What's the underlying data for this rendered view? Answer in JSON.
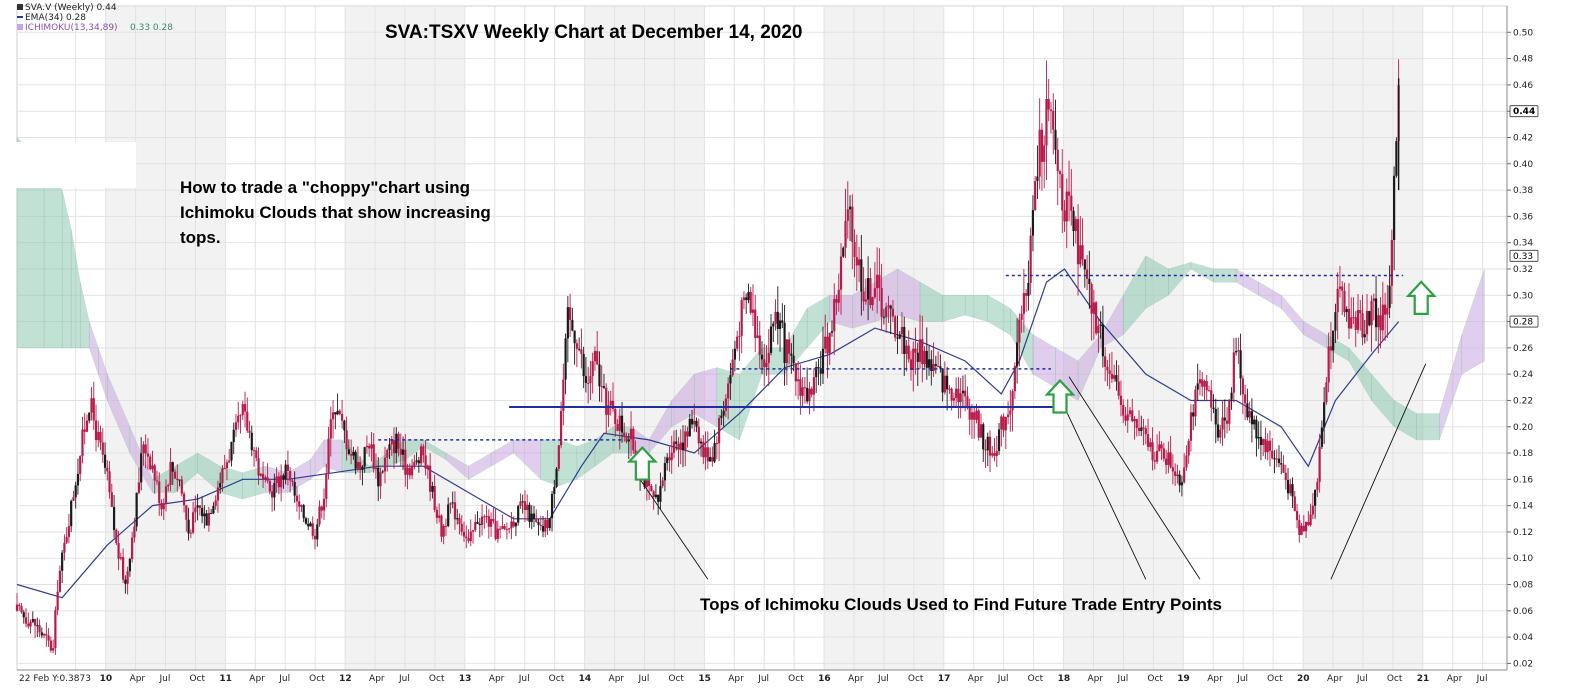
{
  "chart_data": {
    "type": "candlestick",
    "title": "SVA:TSXV Weekly Chart at December 14, 2020",
    "annotation_text": [
      "How to trade a \"choppy\"chart using",
      "Ichimoku Clouds that show increasing",
      "tops."
    ],
    "bottom_annotation": "Tops of Ichimoku Clouds Used to Find Future Trade Entry Points",
    "legend": {
      "price": "SVA.V (Weekly) 0.44",
      "ema": "EMA(34) 0.28",
      "ichimoku_label": "ICHIMOKU(13,34,89)",
      "ichimoku_values": "0.33 0.28"
    },
    "start_label": "22 Feb Y:0.3873",
    "ylim": [
      0.015,
      0.52
    ],
    "y_ticks": [
      "0.50",
      "0.48",
      "0.46",
      "0.44",
      "0.42",
      "0.40",
      "0.38",
      "0.36",
      "0.34",
      "0.32",
      "0.30",
      "0.28",
      "0.26",
      "0.24",
      "0.22",
      "0.20",
      "0.18",
      "0.16",
      "0.14",
      "0.12",
      "0.10",
      "0.08",
      "0.06",
      "0.04",
      "0.02"
    ],
    "y_badges": [
      {
        "label": "0.44",
        "value": 0.44,
        "bold": true
      },
      {
        "label": "0.33",
        "value": 0.33,
        "bold": false
      },
      {
        "label": "0.28",
        "value": 0.28,
        "bold": false
      }
    ],
    "x_ticks": [
      "Oct",
      "10",
      "Apr",
      "Jul",
      "Oct",
      "11",
      "Apr",
      "Jul",
      "Oct",
      "12",
      "Apr",
      "Jul",
      "Oct",
      "13",
      "Apr",
      "Jul",
      "Oct",
      "14",
      "Apr",
      "Jul",
      "Oct",
      "15",
      "Apr",
      "Jul",
      "Oct",
      "16",
      "Apr",
      "Jul",
      "Oct",
      "17",
      "Apr",
      "Jul",
      "Oct",
      "18",
      "Apr",
      "Jul",
      "Oct",
      "19",
      "Apr",
      "Jul",
      "Oct",
      "20",
      "Apr",
      "Jul",
      "Oct",
      "21",
      "Apr",
      "Jul"
    ],
    "x_year_labels": [
      "10",
      "11",
      "12",
      "13",
      "14",
      "15",
      "16",
      "17",
      "18",
      "19",
      "20",
      "21"
    ],
    "price_path": [
      [
        0,
        0.06
      ],
      [
        4,
        0.05
      ],
      [
        8,
        0.03
      ],
      [
        9,
        0.08
      ],
      [
        11,
        0.12
      ],
      [
        14,
        0.18
      ],
      [
        16,
        0.22
      ],
      [
        18,
        0.19
      ],
      [
        20,
        0.16
      ],
      [
        22,
        0.11
      ],
      [
        24,
        0.08
      ],
      [
        26,
        0.13
      ],
      [
        28,
        0.19
      ],
      [
        30,
        0.17
      ],
      [
        32,
        0.14
      ],
      [
        34,
        0.17
      ],
      [
        36,
        0.16
      ],
      [
        38,
        0.12
      ],
      [
        40,
        0.14
      ],
      [
        42,
        0.13
      ],
      [
        44,
        0.15
      ],
      [
        46,
        0.17
      ],
      [
        48,
        0.19
      ],
      [
        50,
        0.21
      ],
      [
        52,
        0.19
      ],
      [
        54,
        0.16
      ],
      [
        56,
        0.15
      ],
      [
        58,
        0.16
      ],
      [
        60,
        0.17
      ],
      [
        62,
        0.14
      ],
      [
        64,
        0.13
      ],
      [
        66,
        0.12
      ],
      [
        68,
        0.15
      ],
      [
        70,
        0.22
      ],
      [
        72,
        0.2
      ],
      [
        74,
        0.18
      ],
      [
        76,
        0.17
      ],
      [
        78,
        0.19
      ],
      [
        80,
        0.16
      ],
      [
        82,
        0.18
      ],
      [
        84,
        0.19
      ],
      [
        86,
        0.17
      ],
      [
        88,
        0.17
      ],
      [
        90,
        0.18
      ],
      [
        92,
        0.15
      ],
      [
        94,
        0.12
      ],
      [
        96,
        0.14
      ],
      [
        98,
        0.13
      ],
      [
        100,
        0.11
      ],
      [
        102,
        0.13
      ],
      [
        104,
        0.13
      ],
      [
        106,
        0.12
      ],
      [
        108,
        0.12
      ],
      [
        110,
        0.13
      ],
      [
        112,
        0.14
      ],
      [
        114,
        0.13
      ],
      [
        116,
        0.12
      ],
      [
        118,
        0.13
      ],
      [
        120,
        0.19
      ],
      [
        122,
        0.28
      ],
      [
        124,
        0.27
      ],
      [
        126,
        0.23
      ],
      [
        128,
        0.25
      ],
      [
        130,
        0.22
      ],
      [
        132,
        0.21
      ],
      [
        134,
        0.2
      ],
      [
        136,
        0.19
      ],
      [
        138,
        0.17
      ],
      [
        140,
        0.15
      ],
      [
        142,
        0.14
      ],
      [
        144,
        0.18
      ],
      [
        146,
        0.19
      ],
      [
        148,
        0.19
      ],
      [
        150,
        0.21
      ],
      [
        152,
        0.18
      ],
      [
        154,
        0.18
      ],
      [
        156,
        0.21
      ],
      [
        158,
        0.24
      ],
      [
        160,
        0.28
      ],
      [
        162,
        0.3
      ],
      [
        164,
        0.27
      ],
      [
        166,
        0.25
      ],
      [
        168,
        0.29
      ],
      [
        170,
        0.26
      ],
      [
        172,
        0.24
      ],
      [
        174,
        0.23
      ],
      [
        176,
        0.22
      ],
      [
        178,
        0.25
      ],
      [
        180,
        0.27
      ],
      [
        182,
        0.31
      ],
      [
        184,
        0.36
      ],
      [
        186,
        0.33
      ],
      [
        188,
        0.3
      ],
      [
        190,
        0.31
      ],
      [
        192,
        0.29
      ],
      [
        194,
        0.28
      ],
      [
        196,
        0.27
      ],
      [
        198,
        0.25
      ],
      [
        200,
        0.26
      ],
      [
        202,
        0.25
      ],
      [
        204,
        0.24
      ],
      [
        206,
        0.23
      ],
      [
        208,
        0.23
      ],
      [
        210,
        0.22
      ],
      [
        212,
        0.21
      ],
      [
        214,
        0.19
      ],
      [
        216,
        0.18
      ],
      [
        218,
        0.2
      ],
      [
        220,
        0.22
      ],
      [
        222,
        0.27
      ],
      [
        224,
        0.32
      ],
      [
        226,
        0.4
      ],
      [
        228,
        0.44
      ],
      [
        230,
        0.41
      ],
      [
        232,
        0.37
      ],
      [
        234,
        0.35
      ],
      [
        236,
        0.32
      ],
      [
        238,
        0.29
      ],
      [
        240,
        0.27
      ],
      [
        242,
        0.24
      ],
      [
        244,
        0.22
      ],
      [
        246,
        0.21
      ],
      [
        248,
        0.2
      ],
      [
        250,
        0.19
      ],
      [
        252,
        0.18
      ],
      [
        254,
        0.18
      ],
      [
        256,
        0.17
      ],
      [
        258,
        0.16
      ],
      [
        260,
        0.21
      ],
      [
        262,
        0.23
      ],
      [
        264,
        0.22
      ],
      [
        266,
        0.2
      ],
      [
        268,
        0.21
      ],
      [
        270,
        0.26
      ],
      [
        272,
        0.22
      ],
      [
        274,
        0.2
      ],
      [
        276,
        0.19
      ],
      [
        278,
        0.18
      ],
      [
        280,
        0.17
      ],
      [
        282,
        0.15
      ],
      [
        284,
        0.12
      ],
      [
        286,
        0.13
      ],
      [
        288,
        0.16
      ],
      [
        290,
        0.24
      ],
      [
        292,
        0.3
      ],
      [
        294,
        0.29
      ],
      [
        296,
        0.28
      ],
      [
        298,
        0.28
      ],
      [
        300,
        0.29
      ],
      [
        302,
        0.28
      ],
      [
        304,
        0.3
      ],
      [
        305,
        0.38
      ],
      [
        306,
        0.44
      ]
    ],
    "ema_path": [
      [
        0,
        0.08
      ],
      [
        10,
        0.07
      ],
      [
        20,
        0.11
      ],
      [
        30,
        0.14
      ],
      [
        40,
        0.145
      ],
      [
        50,
        0.16
      ],
      [
        60,
        0.16
      ],
      [
        70,
        0.165
      ],
      [
        80,
        0.17
      ],
      [
        90,
        0.17
      ],
      [
        100,
        0.15
      ],
      [
        110,
        0.13
      ],
      [
        118,
        0.13
      ],
      [
        125,
        0.17
      ],
      [
        130,
        0.195
      ],
      [
        140,
        0.19
      ],
      [
        150,
        0.18
      ],
      [
        160,
        0.21
      ],
      [
        170,
        0.245
      ],
      [
        180,
        0.255
      ],
      [
        190,
        0.275
      ],
      [
        200,
        0.265
      ],
      [
        210,
        0.25
      ],
      [
        218,
        0.225
      ],
      [
        222,
        0.25
      ],
      [
        228,
        0.31
      ],
      [
        232,
        0.32
      ],
      [
        240,
        0.28
      ],
      [
        250,
        0.24
      ],
      [
        260,
        0.22
      ],
      [
        270,
        0.22
      ],
      [
        280,
        0.2
      ],
      [
        286,
        0.17
      ],
      [
        292,
        0.22
      ],
      [
        300,
        0.255
      ],
      [
        306,
        0.28
      ]
    ],
    "cloud": [
      [
        0,
        0.42,
        0.26
      ],
      [
        6,
        0.4,
        0.26
      ],
      [
        10,
        0.38,
        0.26
      ],
      [
        12,
        0.35,
        0.26
      ],
      [
        14,
        0.31,
        0.26
      ],
      [
        16,
        0.28,
        0.26
      ],
      [
        18,
        0.26,
        0.24
      ],
      [
        20,
        0.24,
        0.22
      ],
      [
        25,
        0.2,
        0.18
      ],
      [
        30,
        0.16,
        0.15
      ],
      [
        35,
        0.17,
        0.15
      ],
      [
        40,
        0.18,
        0.165
      ],
      [
        45,
        0.17,
        0.15
      ],
      [
        50,
        0.165,
        0.145
      ],
      [
        55,
        0.17,
        0.15
      ],
      [
        60,
        0.165,
        0.15
      ],
      [
        65,
        0.175,
        0.16
      ],
      [
        68,
        0.19,
        0.17
      ],
      [
        72,
        0.19,
        0.165
      ],
      [
        78,
        0.17,
        0.165
      ],
      [
        82,
        0.18,
        0.17
      ],
      [
        86,
        0.19,
        0.175
      ],
      [
        90,
        0.19,
        0.185
      ],
      [
        95,
        0.18,
        0.175
      ],
      [
        100,
        0.17,
        0.16
      ],
      [
        105,
        0.18,
        0.17
      ],
      [
        110,
        0.19,
        0.18
      ],
      [
        116,
        0.19,
        0.16
      ],
      [
        120,
        0.19,
        0.155
      ],
      [
        124,
        0.185,
        0.16
      ],
      [
        128,
        0.19,
        0.17
      ],
      [
        132,
        0.2,
        0.18
      ],
      [
        136,
        0.2,
        0.18
      ],
      [
        140,
        0.19,
        0.18
      ],
      [
        145,
        0.22,
        0.2
      ],
      [
        150,
        0.24,
        0.21
      ],
      [
        155,
        0.245,
        0.2
      ],
      [
        160,
        0.24,
        0.19
      ],
      [
        165,
        0.26,
        0.24
      ],
      [
        170,
        0.26,
        0.24
      ],
      [
        175,
        0.29,
        0.26
      ],
      [
        180,
        0.3,
        0.28
      ],
      [
        185,
        0.3,
        0.275
      ],
      [
        190,
        0.31,
        0.28
      ],
      [
        195,
        0.32,
        0.285
      ],
      [
        200,
        0.31,
        0.28
      ],
      [
        205,
        0.3,
        0.28
      ],
      [
        210,
        0.3,
        0.285
      ],
      [
        215,
        0.3,
        0.28
      ],
      [
        220,
        0.29,
        0.27
      ],
      [
        225,
        0.27,
        0.24
      ],
      [
        230,
        0.26,
        0.23
      ],
      [
        235,
        0.25,
        0.22
      ],
      [
        240,
        0.27,
        0.26
      ],
      [
        245,
        0.3,
        0.27
      ],
      [
        250,
        0.33,
        0.29
      ],
      [
        255,
        0.32,
        0.3
      ],
      [
        260,
        0.325,
        0.32
      ],
      [
        265,
        0.32,
        0.31
      ],
      [
        270,
        0.32,
        0.31
      ],
      [
        275,
        0.31,
        0.3
      ],
      [
        280,
        0.3,
        0.29
      ],
      [
        285,
        0.28,
        0.27
      ],
      [
        290,
        0.27,
        0.26
      ],
      [
        295,
        0.26,
        0.25
      ],
      [
        300,
        0.24,
        0.22
      ],
      [
        305,
        0.22,
        0.2
      ],
      [
        310,
        0.21,
        0.19
      ],
      [
        315,
        0.21,
        0.19
      ],
      [
        320,
        0.27,
        0.24
      ],
      [
        325,
        0.32,
        0.25
      ]
    ],
    "grid": true,
    "colors": {
      "candle": "#b81a4a",
      "candle_black": "#1a1a1a",
      "ema": "#2e3c8c",
      "cloud_green": "#8fc9b4",
      "cloud_purple": "#c9a6df",
      "level_line": "#1f2e9a",
      "arrow": "#2ea043",
      "band": "#e8e8e8"
    }
  }
}
